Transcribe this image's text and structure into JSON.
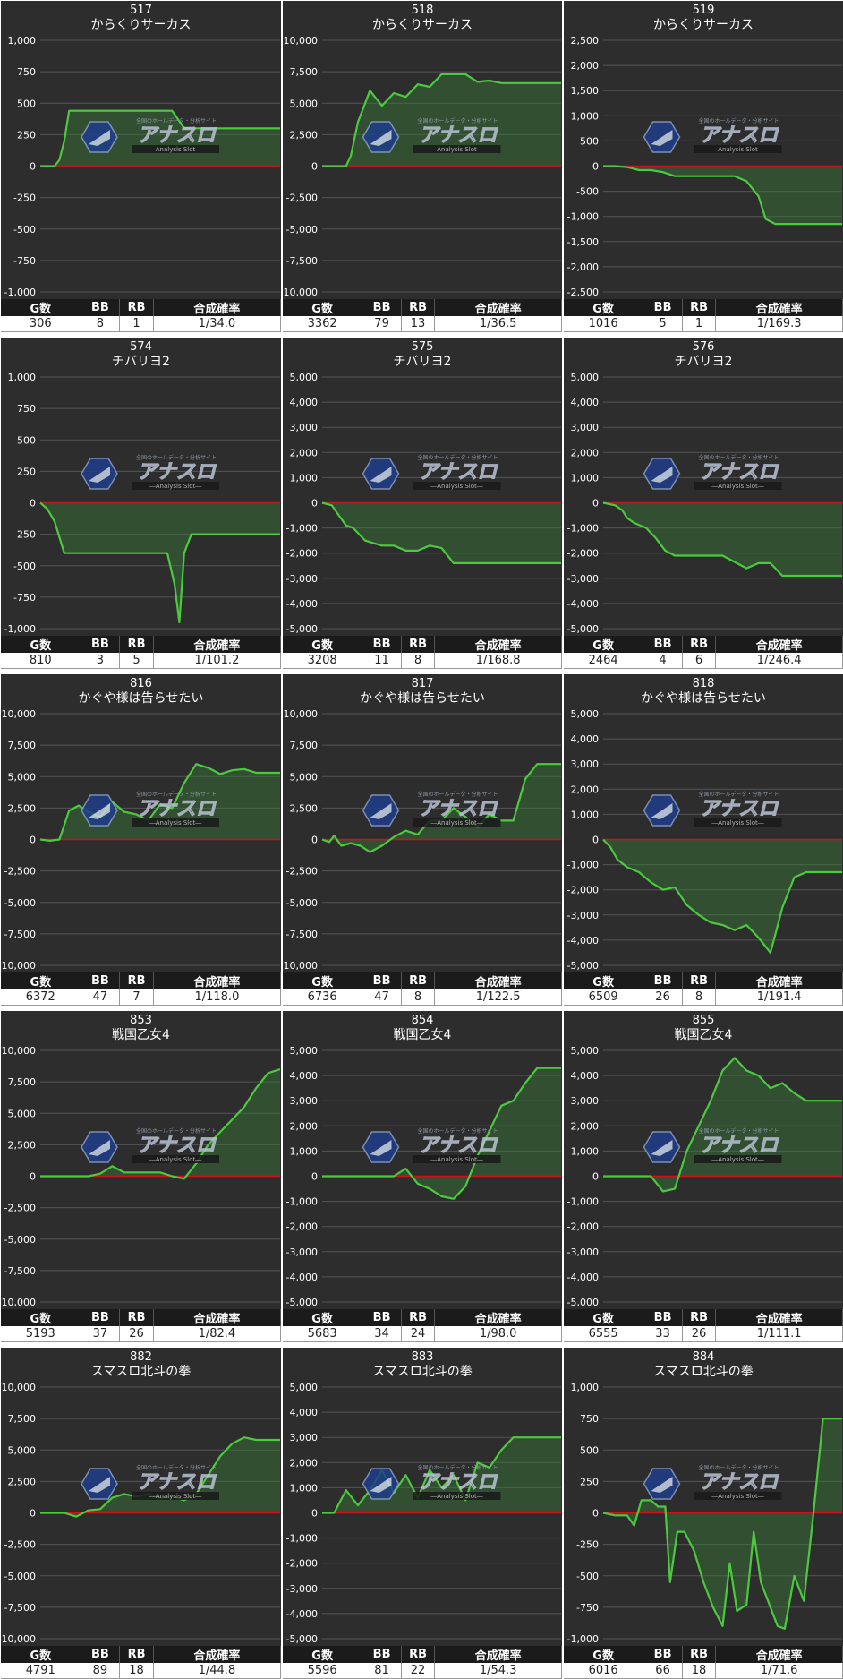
{
  "chart_data": [
    {
      "type": "area",
      "number": "517",
      "title": "からくりサーカス",
      "ylim": [
        -1000,
        1000
      ],
      "yticks": [
        1000,
        750,
        500,
        250,
        0,
        -250,
        -500,
        -750,
        -1000
      ],
      "ytick_labels": [
        "1,000",
        "750",
        "500",
        "250",
        "0",
        "-250",
        "-500",
        "-750",
        "-1,000"
      ],
      "x": [
        0,
        0.02,
        0.04,
        0.06,
        0.08,
        0.1,
        0.12,
        0.15,
        0.2,
        0.3,
        0.4,
        0.45,
        0.5,
        0.55,
        0.6,
        0.7,
        0.8,
        0.9,
        1.0
      ],
      "y": [
        0,
        0,
        0,
        0,
        50,
        200,
        440,
        440,
        440,
        440,
        440,
        440,
        440,
        440,
        300,
        300,
        300,
        300,
        300
      ],
      "stats": {
        "headers": [
          "G数",
          "BB",
          "RB",
          "合成確率"
        ],
        "values": [
          "306",
          "8",
          "1",
          "1/34.0"
        ]
      }
    },
    {
      "type": "area",
      "number": "518",
      "title": "からくりサーカス",
      "ylim": [
        -10000,
        10000
      ],
      "yticks": [
        10000,
        7500,
        5000,
        2500,
        0,
        -2500,
        -5000,
        -7500,
        -10000
      ],
      "ytick_labels": [
        "10,000",
        "7,500",
        "5,000",
        "2,500",
        "0",
        "-2,500",
        "-5,000",
        "-7,500",
        "-10,000"
      ],
      "x": [
        0,
        0.05,
        0.1,
        0.12,
        0.15,
        0.2,
        0.25,
        0.3,
        0.35,
        0.4,
        0.45,
        0.5,
        0.55,
        0.6,
        0.65,
        0.7,
        0.75,
        0.8,
        0.85,
        0.9,
        0.95,
        1.0
      ],
      "y": [
        0,
        0,
        0,
        800,
        3500,
        6000,
        4800,
        5800,
        5500,
        6500,
        6300,
        7300,
        7300,
        7300,
        6700,
        6800,
        6600,
        6600,
        6600,
        6600,
        6600,
        6600
      ],
      "stats": {
        "headers": [
          "G数",
          "BB",
          "RB",
          "合成確率"
        ],
        "values": [
          "3362",
          "79",
          "13",
          "1/36.5"
        ]
      }
    },
    {
      "type": "area",
      "number": "519",
      "title": "からくりサーカス",
      "ylim": [
        -2500,
        2500
      ],
      "yticks": [
        2500,
        2000,
        1500,
        1000,
        500,
        0,
        -500,
        -1000,
        -1500,
        -2000,
        -2500
      ],
      "ytick_labels": [
        "2,500",
        "2,000",
        "1,500",
        "1,000",
        "500",
        "0",
        "-500",
        "-1,000",
        "-1,500",
        "-2,000",
        "-2,500"
      ],
      "x": [
        0,
        0.05,
        0.1,
        0.15,
        0.2,
        0.25,
        0.3,
        0.35,
        0.4,
        0.45,
        0.5,
        0.55,
        0.6,
        0.65,
        0.68,
        0.72,
        0.78,
        0.85,
        0.9,
        0.95,
        1.0
      ],
      "y": [
        0,
        0,
        -20,
        -80,
        -80,
        -120,
        -200,
        -200,
        -200,
        -200,
        -200,
        -200,
        -300,
        -600,
        -1050,
        -1150,
        -1150,
        -1150,
        -1150,
        -1150,
        -1150
      ],
      "stats": {
        "headers": [
          "G数",
          "BB",
          "RB",
          "合成確率"
        ],
        "values": [
          "1016",
          "5",
          "1",
          "1/169.3"
        ]
      }
    },
    {
      "type": "area",
      "number": "574",
      "title": "チバリヨ2",
      "ylim": [
        -1000,
        1000
      ],
      "yticks": [
        1000,
        750,
        500,
        250,
        0,
        -250,
        -500,
        -750,
        -1000
      ],
      "ytick_labels": [
        "1,000",
        "750",
        "500",
        "250",
        "0",
        "-250",
        "-500",
        "-750",
        "-1,000"
      ],
      "x": [
        0,
        0.03,
        0.06,
        0.1,
        0.2,
        0.3,
        0.4,
        0.5,
        0.53,
        0.56,
        0.58,
        0.6,
        0.63,
        0.7,
        0.8,
        0.9,
        1.0
      ],
      "y": [
        0,
        -50,
        -150,
        -400,
        -400,
        -400,
        -400,
        -400,
        -400,
        -650,
        -950,
        -400,
        -250,
        -250,
        -250,
        -250,
        -250
      ],
      "stats": {
        "headers": [
          "G数",
          "BB",
          "RB",
          "合成確率"
        ],
        "values": [
          "810",
          "3",
          "5",
          "1/101.2"
        ]
      }
    },
    {
      "type": "area",
      "number": "575",
      "title": "チバリヨ2",
      "ylim": [
        -5000,
        5000
      ],
      "yticks": [
        5000,
        4000,
        3000,
        2000,
        1000,
        0,
        -1000,
        -2000,
        -3000,
        -4000,
        -5000
      ],
      "ytick_labels": [
        "5,000",
        "4,000",
        "3,000",
        "2,000",
        "1,000",
        "0",
        "-1,000",
        "-2,000",
        "-3,000",
        "-4,000",
        "-5,000"
      ],
      "x": [
        0,
        0.04,
        0.07,
        0.1,
        0.13,
        0.18,
        0.25,
        0.3,
        0.35,
        0.4,
        0.45,
        0.5,
        0.55,
        0.6,
        0.7,
        0.8,
        0.9,
        1.0
      ],
      "y": [
        0,
        -100,
        -500,
        -900,
        -1000,
        -1500,
        -1700,
        -1700,
        -1900,
        -1900,
        -1700,
        -1800,
        -2400,
        -2400,
        -2400,
        -2400,
        -2400,
        -2400
      ],
      "stats": {
        "headers": [
          "G数",
          "BB",
          "RB",
          "合成確率"
        ],
        "values": [
          "3208",
          "11",
          "8",
          "1/168.8"
        ]
      }
    },
    {
      "type": "area",
      "number": "576",
      "title": "チバリヨ2",
      "ylim": [
        -5000,
        5000
      ],
      "yticks": [
        5000,
        4000,
        3000,
        2000,
        1000,
        0,
        -1000,
        -2000,
        -3000,
        -4000,
        -5000
      ],
      "ytick_labels": [
        "5,000",
        "4,000",
        "3,000",
        "2,000",
        "1,000",
        "0",
        "-1,000",
        "-2,000",
        "-3,000",
        "-4,000",
        "-5,000"
      ],
      "x": [
        0,
        0.05,
        0.08,
        0.1,
        0.13,
        0.18,
        0.22,
        0.26,
        0.3,
        0.35,
        0.4,
        0.5,
        0.6,
        0.65,
        0.7,
        0.75,
        0.8,
        0.9,
        1.0
      ],
      "y": [
        0,
        -100,
        -300,
        -600,
        -800,
        -1000,
        -1400,
        -1900,
        -2100,
        -2100,
        -2100,
        -2100,
        -2600,
        -2400,
        -2400,
        -2900,
        -2900,
        -2900,
        -2900
      ],
      "stats": {
        "headers": [
          "G数",
          "BB",
          "RB",
          "合成確率"
        ],
        "values": [
          "2464",
          "4",
          "6",
          "1/246.4"
        ]
      }
    },
    {
      "type": "area",
      "number": "816",
      "title": "かぐや様は告らせたい",
      "ylim": [
        -10000,
        10000
      ],
      "yticks": [
        10000,
        7500,
        5000,
        2500,
        0,
        -2500,
        -5000,
        -7500,
        -10000
      ],
      "ytick_labels": [
        "10,000",
        "7,500",
        "5,000",
        "2,500",
        "0",
        "-2,500",
        "-5,000",
        "-7,500",
        "-10,000"
      ],
      "x": [
        0,
        0.04,
        0.08,
        0.12,
        0.16,
        0.2,
        0.25,
        0.3,
        0.35,
        0.4,
        0.45,
        0.5,
        0.55,
        0.6,
        0.65,
        0.7,
        0.75,
        0.8,
        0.85,
        0.9,
        1.0
      ],
      "y": [
        0,
        -100,
        0,
        2300,
        2700,
        2200,
        1800,
        3000,
        2200,
        2000,
        1500,
        2800,
        2500,
        4500,
        6000,
        5700,
        5200,
        5500,
        5600,
        5300,
        5300
      ],
      "stats": {
        "headers": [
          "G数",
          "BB",
          "RB",
          "合成確率"
        ],
        "values": [
          "6372",
          "47",
          "7",
          "1/118.0"
        ]
      }
    },
    {
      "type": "area",
      "number": "817",
      "title": "かぐや様は告らせたい",
      "ylim": [
        -10000,
        10000
      ],
      "yticks": [
        10000,
        7500,
        5000,
        2500,
        0,
        -2500,
        -5000,
        -7500,
        -10000
      ],
      "ytick_labels": [
        "10,000",
        "7,500",
        "5,000",
        "2,500",
        "0",
        "-2,500",
        "-5,000",
        "-7,500",
        "-10,000"
      ],
      "x": [
        0,
        0.03,
        0.05,
        0.08,
        0.12,
        0.16,
        0.2,
        0.25,
        0.3,
        0.35,
        0.4,
        0.45,
        0.5,
        0.55,
        0.6,
        0.65,
        0.7,
        0.75,
        0.8,
        0.85,
        0.9,
        0.95,
        1.0
      ],
      "y": [
        0,
        -200,
        300,
        -500,
        -300,
        -500,
        -1000,
        -500,
        200,
        700,
        400,
        1500,
        1500,
        2500,
        1800,
        1000,
        2000,
        1500,
        1500,
        4800,
        6000,
        6000,
        6000
      ],
      "stats": {
        "headers": [
          "G数",
          "BB",
          "RB",
          "合成確率"
        ],
        "values": [
          "6736",
          "47",
          "8",
          "1/122.5"
        ]
      }
    },
    {
      "type": "area",
      "number": "818",
      "title": "かぐや様は告らせたい",
      "ylim": [
        -5000,
        5000
      ],
      "yticks": [
        5000,
        4000,
        3000,
        2000,
        1000,
        0,
        -1000,
        -2000,
        -3000,
        -4000,
        -5000
      ],
      "ytick_labels": [
        "5,000",
        "4,000",
        "3,000",
        "2,000",
        "1,000",
        "0",
        "-1,000",
        "-2,000",
        "-3,000",
        "-4,000",
        "-5,000"
      ],
      "x": [
        0,
        0.03,
        0.06,
        0.1,
        0.15,
        0.2,
        0.25,
        0.3,
        0.35,
        0.4,
        0.45,
        0.5,
        0.55,
        0.6,
        0.65,
        0.7,
        0.72,
        0.75,
        0.8,
        0.85,
        0.9,
        1.0
      ],
      "y": [
        0,
        -300,
        -800,
        -1100,
        -1300,
        -1700,
        -2000,
        -1900,
        -2600,
        -3000,
        -3300,
        -3400,
        -3600,
        -3400,
        -3900,
        -4500,
        -3800,
        -2700,
        -1500,
        -1300,
        -1300,
        -1300
      ],
      "stats": {
        "headers": [
          "G数",
          "BB",
          "RB",
          "合成確率"
        ],
        "values": [
          "6509",
          "26",
          "8",
          "1/191.4"
        ]
      }
    },
    {
      "type": "area",
      "number": "853",
      "title": "戦国乙女4",
      "ylim": [
        -10000,
        10000
      ],
      "yticks": [
        10000,
        7500,
        5000,
        2500,
        0,
        -2500,
        -5000,
        -7500,
        -10000
      ],
      "ytick_labels": [
        "10,000",
        "7,500",
        "5,000",
        "2,500",
        "0",
        "-2,500",
        "-5,000",
        "-7,500",
        "-10,000"
      ],
      "x": [
        0,
        0.1,
        0.2,
        0.25,
        0.3,
        0.35,
        0.4,
        0.5,
        0.55,
        0.6,
        0.65,
        0.7,
        0.75,
        0.8,
        0.85,
        0.9,
        0.95,
        1.0
      ],
      "y": [
        0,
        0,
        0,
        200,
        800,
        300,
        300,
        300,
        0,
        -200,
        1000,
        2500,
        3500,
        4500,
        5500,
        7000,
        8200,
        8500
      ],
      "stats": {
        "headers": [
          "G数",
          "BB",
          "RB",
          "合成確率"
        ],
        "values": [
          "5193",
          "37",
          "26",
          "1/82.4"
        ]
      }
    },
    {
      "type": "area",
      "number": "854",
      "title": "戦国乙女4",
      "ylim": [
        -5000,
        5000
      ],
      "yticks": [
        5000,
        4000,
        3000,
        2000,
        1000,
        0,
        -1000,
        -2000,
        -3000,
        -4000,
        -5000
      ],
      "ytick_labels": [
        "5,000",
        "4,000",
        "3,000",
        "2,000",
        "1,000",
        "0",
        "-1,000",
        "-2,000",
        "-3,000",
        "-4,000",
        "-5,000"
      ],
      "x": [
        0,
        0.1,
        0.2,
        0.3,
        0.35,
        0.4,
        0.45,
        0.5,
        0.55,
        0.6,
        0.65,
        0.7,
        0.75,
        0.8,
        0.85,
        0.9,
        0.95,
        1.0
      ],
      "y": [
        0,
        0,
        0,
        0,
        300,
        -300,
        -500,
        -800,
        -900,
        -400,
        800,
        1800,
        2800,
        3000,
        3700,
        4300,
        4300,
        4300
      ],
      "stats": {
        "headers": [
          "G数",
          "BB",
          "RB",
          "合成確率"
        ],
        "values": [
          "5683",
          "34",
          "24",
          "1/98.0"
        ]
      }
    },
    {
      "type": "area",
      "number": "855",
      "title": "戦国乙女4",
      "ylim": [
        -5000,
        5000
      ],
      "yticks": [
        5000,
        4000,
        3000,
        2000,
        1000,
        0,
        -1000,
        -2000,
        -3000,
        -4000,
        -5000
      ],
      "ytick_labels": [
        "5,000",
        "4,000",
        "3,000",
        "2,000",
        "1,000",
        "0",
        "-1,000",
        "-2,000",
        "-3,000",
        "-4,000",
        "-5,000"
      ],
      "x": [
        0,
        0.1,
        0.2,
        0.25,
        0.3,
        0.35,
        0.4,
        0.45,
        0.5,
        0.55,
        0.6,
        0.65,
        0.7,
        0.75,
        0.8,
        0.85,
        0.9,
        0.95,
        1.0
      ],
      "y": [
        0,
        0,
        0,
        -600,
        -500,
        1000,
        2000,
        3000,
        4200,
        4700,
        4200,
        4000,
        3500,
        3700,
        3300,
        3000,
        3000,
        3000,
        3000
      ],
      "stats": {
        "headers": [
          "G数",
          "BB",
          "RB",
          "合成確率"
        ],
        "values": [
          "6555",
          "33",
          "26",
          "1/111.1"
        ]
      }
    },
    {
      "type": "area",
      "number": "882",
      "title": "スマスロ北斗の拳",
      "ylim": [
        -10000,
        10000
      ],
      "yticks": [
        10000,
        7500,
        5000,
        2500,
        0,
        -2500,
        -5000,
        -7500,
        -10000
      ],
      "ytick_labels": [
        "10,000",
        "7,500",
        "5,000",
        "2,500",
        "0",
        "-2,500",
        "-5,000",
        "-7,500",
        "-10,000"
      ],
      "x": [
        0,
        0.1,
        0.15,
        0.2,
        0.25,
        0.3,
        0.35,
        0.4,
        0.45,
        0.5,
        0.55,
        0.6,
        0.65,
        0.7,
        0.75,
        0.8,
        0.85,
        0.9,
        0.95,
        1.0
      ],
      "y": [
        0,
        0,
        -300,
        200,
        300,
        1200,
        1500,
        1300,
        1500,
        1200,
        1300,
        1000,
        1500,
        3000,
        4500,
        5500,
        6000,
        5800,
        5800,
        5800
      ],
      "stats": {
        "headers": [
          "G数",
          "BB",
          "RB",
          "合成確率"
        ],
        "values": [
          "4791",
          "89",
          "18",
          "1/44.8"
        ]
      }
    },
    {
      "type": "area",
      "number": "883",
      "title": "スマスロ北斗の拳",
      "ylim": [
        -5000,
        5000
      ],
      "yticks": [
        5000,
        4000,
        3000,
        2000,
        1000,
        0,
        -1000,
        -2000,
        -3000,
        -4000,
        -5000
      ],
      "ytick_labels": [
        "5,000",
        "4,000",
        "3,000",
        "2,000",
        "1,000",
        "0",
        "-1,000",
        "-2,000",
        "-3,000",
        "-4,000",
        "-5,000"
      ],
      "x": [
        0,
        0.05,
        0.1,
        0.15,
        0.2,
        0.25,
        0.3,
        0.35,
        0.4,
        0.45,
        0.5,
        0.55,
        0.6,
        0.65,
        0.7,
        0.75,
        0.8,
        0.85,
        0.9,
        0.95,
        1.0
      ],
      "y": [
        0,
        0,
        900,
        300,
        900,
        1700,
        800,
        1500,
        600,
        1700,
        1000,
        1500,
        500,
        2000,
        1800,
        2500,
        3000,
        3000,
        3000,
        3000,
        3000
      ],
      "stats": {
        "headers": [
          "G数",
          "BB",
          "RB",
          "合成確率"
        ],
        "values": [
          "5596",
          "81",
          "22",
          "1/54.3"
        ]
      }
    },
    {
      "type": "area",
      "number": "884",
      "title": "スマスロ北斗の拳",
      "ylim": [
        -1000,
        1000
      ],
      "yticks": [
        1000,
        750,
        500,
        250,
        0,
        -250,
        -500,
        -750,
        -1000
      ],
      "ytick_labels": [
        "1,000",
        "750",
        "500",
        "250",
        "0",
        "-250",
        "-500",
        "-750",
        "-1,000"
      ],
      "x": [
        0,
        0.05,
        0.1,
        0.13,
        0.16,
        0.2,
        0.23,
        0.26,
        0.28,
        0.31,
        0.34,
        0.38,
        0.42,
        0.46,
        0.5,
        0.53,
        0.56,
        0.6,
        0.63,
        0.66,
        0.7,
        0.73,
        0.76,
        0.8,
        0.84,
        0.88,
        0.92,
        0.96,
        1.0
      ],
      "y": [
        0,
        -20,
        -20,
        -100,
        100,
        100,
        50,
        50,
        -550,
        -150,
        -150,
        -300,
        -550,
        -750,
        -900,
        -400,
        -780,
        -730,
        -150,
        -550,
        -750,
        -900,
        -920,
        -500,
        -700,
        0,
        750,
        750,
        750
      ],
      "stats": {
        "headers": [
          "G数",
          "BB",
          "RB",
          "合成確率"
        ],
        "values": [
          "6016",
          "66",
          "18",
          "1/71.6"
        ]
      }
    }
  ],
  "watermark": {
    "main": "アナスロ",
    "sub": "―Analysis Slot―",
    "tagline": "全国のホールデータ・分析サイト"
  }
}
